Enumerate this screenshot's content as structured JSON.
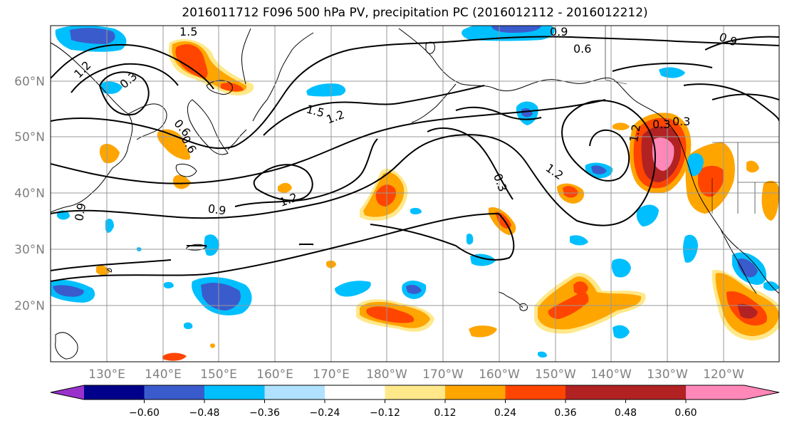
{
  "title": "2016011712 F096 500 hPa PV, precipitation PC (2016012112 - 2016012212)",
  "lat_labels": [
    "60°N",
    "50°N",
    "40°N",
    "30°N",
    "20°N"
  ],
  "lon_labels": [
    "130°E",
    "140°E",
    "150°E",
    "160°E",
    "170°E",
    "180°W",
    "170°W",
    "160°W",
    "150°W",
    "140°W",
    "130°W",
    "120°W"
  ],
  "colorbar": {
    "ticks": [
      "−0.60",
      "−0.48",
      "−0.36",
      "−0.24",
      "−0.12",
      "0.12",
      "0.24",
      "0.36",
      "0.48",
      "0.60"
    ],
    "colors": [
      "#9932cc",
      "#00008b",
      "#3a5bcc",
      "#00bfff",
      "#b0e2ff",
      "#ffffff",
      "#ffe88a",
      "#ffa500",
      "#ff4500",
      "#b22222",
      "#ff88b8"
    ]
  },
  "contour_labels": [
    "1.5",
    "1.2",
    "0.3",
    "0.6",
    "0.9",
    "0.6",
    "0.9",
    "1.5",
    "1.2",
    "1.2",
    "0.9",
    "0.3",
    "1.2",
    "1.2",
    "0.6",
    "0.9",
    "0.3",
    "0.3"
  ]
}
